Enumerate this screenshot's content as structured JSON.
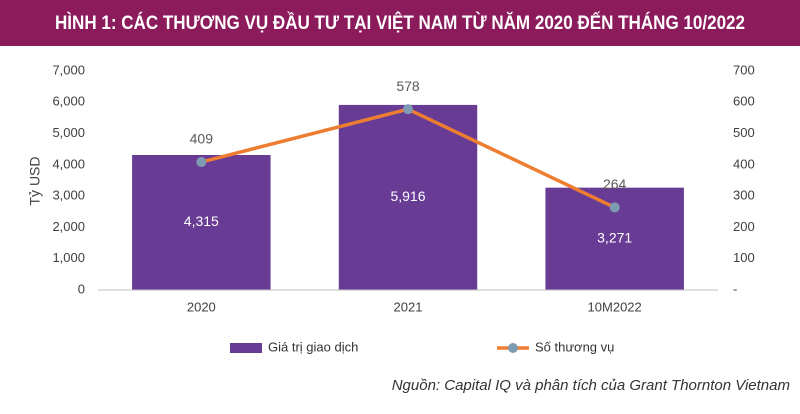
{
  "chart_data": {
    "type": "bar",
    "title": "HÌNH 1: CÁC THƯƠNG VỤ ĐẦU TƯ TẠI VIỆT NAM TỪ NĂM 2020 ĐẾN THÁNG 10/2022",
    "y_label": "Tỷ USD",
    "source": "Nguồn: Capital IQ và phân tích của Grant Thornton Vietnam",
    "categories": [
      "2020",
      "2021",
      "10M2022"
    ],
    "series": [
      {
        "name": "Giá trị giao dịch",
        "type": "bar",
        "color": "#683b95",
        "values": [
          4315,
          5916,
          3271
        ],
        "value_labels": [
          "4,315",
          "5,916",
          "3,271"
        ]
      },
      {
        "name": "Số thương vụ",
        "type": "line",
        "axis": "y2",
        "color": "#ed7d31",
        "marker_color": "#7f9bb3",
        "values": [
          409,
          578,
          264
        ]
      }
    ],
    "ylim": [
      0,
      7000
    ],
    "yticks": [
      0,
      {
        "value": 1000,
        "label": "1,000"
      },
      {
        "value": 2000,
        "label": "2,000"
      },
      {
        "value": 3000,
        "label": "3,000"
      },
      {
        "value": 4000,
        "label": "4,000"
      },
      {
        "value": 5000,
        "label": "5,000"
      },
      {
        "value": 6000,
        "label": "6,000"
      },
      {
        "value": 7000,
        "label": "7,000"
      }
    ],
    "y2lim": [
      0,
      700
    ],
    "y2ticks": [
      {
        "value": 0,
        "label": "-"
      },
      100,
      200,
      300,
      400,
      500,
      600,
      700
    ]
  }
}
